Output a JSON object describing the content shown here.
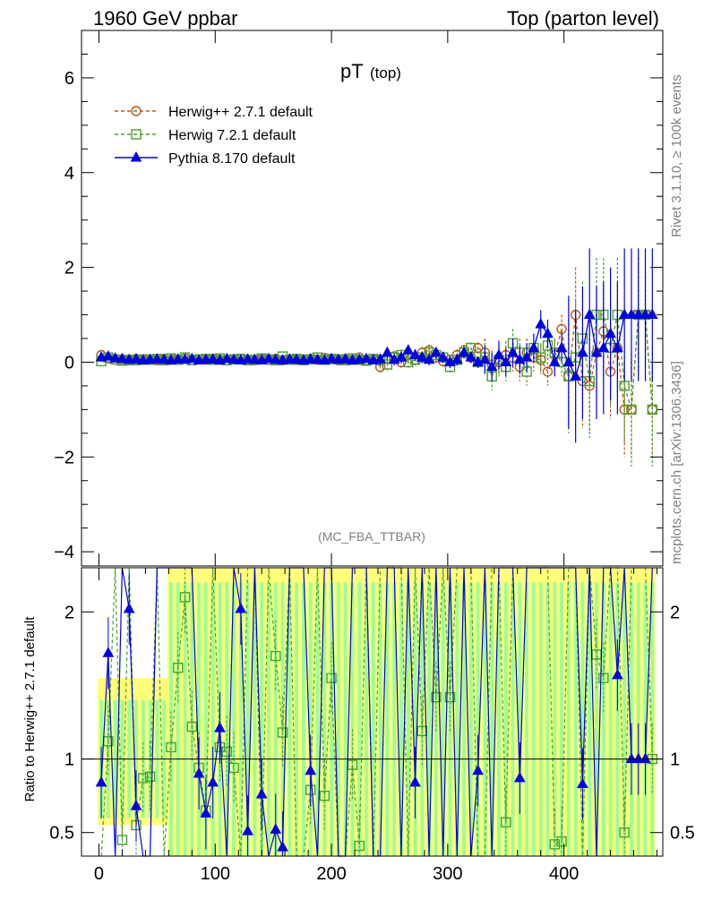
{
  "header": {
    "left": "1960 GeV ppbar",
    "right": "Top (parton level)"
  },
  "side_labels": {
    "rivet": "Rivet 3.1.10, ≥ 100k events",
    "mcplots": "mcplots.cern.ch [arXiv:1306.3436]"
  },
  "colors": {
    "herwigpp": "#b35a1b",
    "herwig7": "#4aa02c",
    "pythia": "#0000e6",
    "band_yellow": "#ffff77",
    "band_green": "#99ff99"
  },
  "chart_data": [
    {
      "type": "line",
      "title": "pT",
      "title_sub": "(top)",
      "annotation": "(MC_FBA_TTBAR)",
      "xlim": [
        -15,
        485
      ],
      "ylim": [
        -4.3,
        7.0
      ],
      "yticks": [
        -4,
        -2,
        0,
        2,
        4,
        6
      ],
      "ytick_labels": [
        "−4",
        "−2",
        "0",
        "2",
        "4",
        "6"
      ],
      "legend_position": "top-left",
      "series": [
        {
          "name": "Herwig++ 2.7.1 default",
          "marker": "circle",
          "x": [
            2,
            8,
            14,
            20,
            26,
            32,
            38,
            44,
            50,
            56,
            62,
            68,
            74,
            80,
            86,
            92,
            98,
            104,
            110,
            116,
            122,
            128,
            134,
            140,
            146,
            152,
            158,
            164,
            170,
            176,
            182,
            188,
            194,
            200,
            206,
            212,
            218,
            224,
            230,
            236,
            242,
            248,
            254,
            260,
            266,
            272,
            278,
            284,
            290,
            296,
            302,
            308,
            314,
            320,
            326,
            332,
            338,
            344,
            350,
            356,
            362,
            368,
            374,
            380,
            386,
            392,
            398,
            404,
            410,
            416,
            422,
            428,
            434,
            440,
            446,
            452,
            458,
            464,
            470,
            476
          ],
          "y": [
            0.15,
            0.08,
            0.05,
            0.06,
            0.04,
            0.07,
            0.05,
            0.06,
            0.04,
            0.07,
            0.05,
            0.06,
            0.08,
            0.04,
            0.06,
            0.05,
            0.07,
            0.05,
            0.04,
            0.06,
            0.07,
            0.05,
            0.04,
            0.06,
            0.05,
            0.07,
            0.04,
            0.06,
            0.05,
            0.06,
            0.07,
            0.05,
            0.09,
            0.06,
            0.04,
            0.07,
            0.05,
            0.1,
            0.04,
            0.06,
            -0.1,
            0.08,
            0.12,
            0.0,
            0.15,
            0.05,
            0.2,
            0.25,
            0.1,
            0.02,
            0.05,
            0.15,
            0.25,
            0.1,
            0.3,
            0.2,
            -0.05,
            0.0,
            0.15,
            0.1,
            -0.1,
            0.2,
            0.1,
            0.05,
            -0.2,
            0.15,
            0.7,
            -0.3,
            1.0,
            -0.4,
            -0.5,
            0.2,
            0.65,
            -0.2,
            0.3,
            -1.0,
            -1.0,
            1.0,
            1.0,
            -1.0
          ]
        },
        {
          "name": "Herwig 7.2.1 default",
          "marker": "square",
          "x": [
            2,
            8,
            14,
            20,
            26,
            32,
            38,
            44,
            50,
            56,
            62,
            68,
            74,
            80,
            86,
            92,
            98,
            104,
            110,
            116,
            122,
            128,
            134,
            140,
            146,
            152,
            158,
            164,
            170,
            176,
            182,
            188,
            194,
            200,
            206,
            212,
            218,
            224,
            230,
            236,
            242,
            248,
            254,
            260,
            266,
            272,
            278,
            284,
            290,
            296,
            302,
            308,
            314,
            320,
            326,
            332,
            338,
            344,
            350,
            356,
            362,
            368,
            374,
            380,
            386,
            392,
            398,
            404,
            410,
            416,
            422,
            428,
            434,
            440,
            446,
            452,
            458,
            464,
            470,
            476
          ],
          "y": [
            0.02,
            0.1,
            0.06,
            0.03,
            0.05,
            0.04,
            0.06,
            0.05,
            0.07,
            0.04,
            0.08,
            0.05,
            0.1,
            0.04,
            0.06,
            0.07,
            0.05,
            0.08,
            0.04,
            0.06,
            0.07,
            0.04,
            0.05,
            0.08,
            0.06,
            0.04,
            0.12,
            0.05,
            0.07,
            0.04,
            0.06,
            0.1,
            0.05,
            0.07,
            0.06,
            0.04,
            0.08,
            0.05,
            0.03,
            0.07,
            0.05,
            -0.05,
            0.1,
            0.15,
            0.0,
            0.05,
            0.1,
            0.2,
            0.15,
            0.1,
            -0.1,
            0.05,
            0.2,
            0.3,
            0.0,
            0.1,
            -0.3,
            0.05,
            -0.1,
            0.4,
            0.2,
            -0.2,
            0.3,
            0.1,
            0.35,
            0.2,
            0.0,
            -0.3,
            0.1,
            0.5,
            -0.4,
            1.0,
            1.0,
            0.3,
            1.0,
            -0.5,
            -1.0,
            1.0,
            1.0,
            -1.0
          ]
        },
        {
          "name": "Pythia 8.170 default",
          "marker": "triangle",
          "x": [
            2,
            8,
            14,
            20,
            26,
            32,
            38,
            44,
            50,
            56,
            62,
            68,
            74,
            80,
            86,
            92,
            98,
            104,
            110,
            116,
            122,
            128,
            134,
            140,
            146,
            152,
            158,
            164,
            170,
            176,
            182,
            188,
            194,
            200,
            206,
            212,
            218,
            224,
            230,
            236,
            242,
            248,
            254,
            260,
            266,
            272,
            278,
            284,
            290,
            296,
            302,
            308,
            314,
            320,
            326,
            332,
            338,
            344,
            350,
            356,
            362,
            368,
            374,
            380,
            386,
            392,
            398,
            404,
            410,
            416,
            422,
            428,
            434,
            440,
            446,
            452,
            458,
            464,
            470,
            476
          ],
          "y": [
            0.1,
            0.12,
            0.08,
            0.07,
            0.05,
            0.06,
            0.04,
            0.05,
            0.06,
            0.05,
            0.04,
            0.06,
            0.05,
            0.07,
            0.04,
            0.05,
            0.06,
            0.04,
            0.07,
            0.05,
            0.04,
            0.06,
            0.05,
            0.04,
            0.07,
            0.05,
            0.04,
            0.06,
            0.05,
            0.04,
            0.06,
            0.05,
            0.04,
            0.07,
            0.05,
            0.06,
            0.04,
            0.05,
            0.07,
            0.04,
            0.06,
            0.2,
            0.05,
            0.1,
            0.25,
            0.15,
            0.1,
            0.05,
            0.2,
            0.1,
            0.0,
            0.05,
            0.2,
            0.1,
            0.0,
            0.05,
            -0.1,
            0.15,
            0.0,
            0.2,
            0.05,
            0.1,
            0.3,
            0.8,
            0.6,
            0.0,
            0.3,
            0.0,
            -0.3,
            0.2,
            1.0,
            0.2,
            0.3,
            0.6,
            0.3,
            1.0,
            1.0,
            1.0,
            1.0,
            1.0
          ]
        }
      ]
    },
    {
      "type": "line",
      "title": "Ratio",
      "ylabel": "Ratio to Herwig++ 2.7.1 default",
      "xlim": [
        -15,
        485
      ],
      "ylim": [
        0.34,
        2.3
      ],
      "xticks": [
        0,
        100,
        200,
        300,
        400
      ],
      "xtick_labels": [
        "0",
        "100",
        "200",
        "300",
        "400"
      ],
      "yticks": [
        0.5,
        1,
        2
      ],
      "ytick_labels": [
        "0.5",
        "1",
        "2"
      ],
      "series": [
        {
          "name": "Herwig 7.2.1 default",
          "marker": "square",
          "x": [
            2,
            8,
            14,
            20,
            26,
            32,
            38,
            44,
            50,
            56,
            62,
            68,
            74,
            80,
            86,
            92,
            98,
            104,
            110,
            116,
            122,
            128,
            134,
            140,
            146,
            152,
            158,
            164,
            170,
            176,
            182,
            188,
            194,
            200,
            206,
            212,
            218,
            224,
            230,
            236,
            242,
            248,
            254,
            260,
            266,
            272,
            278,
            284,
            290,
            296,
            302,
            308,
            314,
            320,
            326,
            332,
            338,
            344,
            350,
            356,
            362,
            368,
            374,
            380,
            386,
            392,
            398,
            404,
            410,
            416,
            422,
            428,
            434,
            440,
            446,
            452,
            458,
            464,
            470,
            476
          ],
          "y": [
            0.13,
            1.12,
            2.3,
            0.45,
            2.3,
            0.55,
            0.87,
            0.88,
            2.3,
            0.3,
            1.08,
            1.62,
            2.1,
            1.22,
            0.94,
            0.65,
            2.3,
            1.08,
            1.05,
            0.94,
            0.3,
            2.3,
            2.3,
            0.3,
            2.3,
            1.7,
            1.18,
            2.3,
            0.3,
            0.3,
            0.79,
            2.3,
            0.75,
            1.55,
            0.3,
            0.3,
            0.96,
            0.41,
            2.3,
            0.3,
            2.3,
            2.3,
            2.3,
            2.3,
            0.3,
            2.3,
            1.19,
            2.3,
            1.42,
            2.3,
            1.42,
            2.3,
            2.3,
            2.3,
            0.3,
            0.3,
            2.3,
            2.3,
            0.57,
            2.3,
            2.3,
            2.3,
            2.3,
            2.3,
            2.3,
            0.42,
            0.44,
            2.3,
            2.3,
            0.3,
            2.3,
            1.71,
            1.55,
            2.3,
            2.3,
            0.5,
            2.3,
            2.3,
            2.3,
            1.0
          ]
        },
        {
          "name": "Pythia 8.170 default",
          "marker": "triangle",
          "x": [
            2,
            8,
            14,
            20,
            26,
            32,
            38,
            44,
            50,
            56,
            62,
            68,
            74,
            80,
            86,
            92,
            98,
            104,
            110,
            116,
            122,
            128,
            134,
            140,
            146,
            152,
            158,
            164,
            170,
            176,
            182,
            188,
            194,
            200,
            206,
            212,
            218,
            224,
            230,
            236,
            242,
            248,
            254,
            260,
            266,
            272,
            278,
            284,
            290,
            296,
            302,
            308,
            314,
            320,
            326,
            332,
            338,
            344,
            350,
            356,
            362,
            368,
            374,
            380,
            386,
            392,
            398,
            404,
            410,
            416,
            422,
            428,
            434,
            440,
            446,
            452,
            458,
            464,
            470,
            476
          ],
          "y": [
            0.84,
            1.72,
            0.3,
            2.3,
            2.02,
            0.68,
            0.3,
            0.3,
            2.3,
            2.3,
            2.3,
            2.3,
            2.3,
            2.3,
            0.9,
            0.63,
            0.84,
            1.21,
            0.3,
            2.3,
            2.02,
            0.51,
            2.3,
            0.76,
            0.3,
            0.52,
            0.4,
            2.3,
            2.3,
            2.3,
            0.92,
            0.3,
            2.3,
            2.3,
            0.3,
            0.3,
            2.3,
            2.3,
            2.3,
            0.3,
            0.3,
            2.3,
            2.3,
            0.3,
            2.3,
            0.84,
            2.3,
            0.3,
            2.3,
            0.3,
            2.3,
            0.3,
            2.3,
            0.3,
            0.92,
            2.3,
            0.3,
            2.3,
            2.3,
            2.3,
            0.87,
            2.3,
            2.3,
            2.3,
            2.3,
            2.3,
            2.3,
            2.3,
            2.3,
            0.83,
            2.3,
            0.3,
            2.3,
            2.3,
            1.57,
            2.3,
            1.0,
            1.0,
            1.0,
            2.3
          ]
        }
      ]
    }
  ]
}
